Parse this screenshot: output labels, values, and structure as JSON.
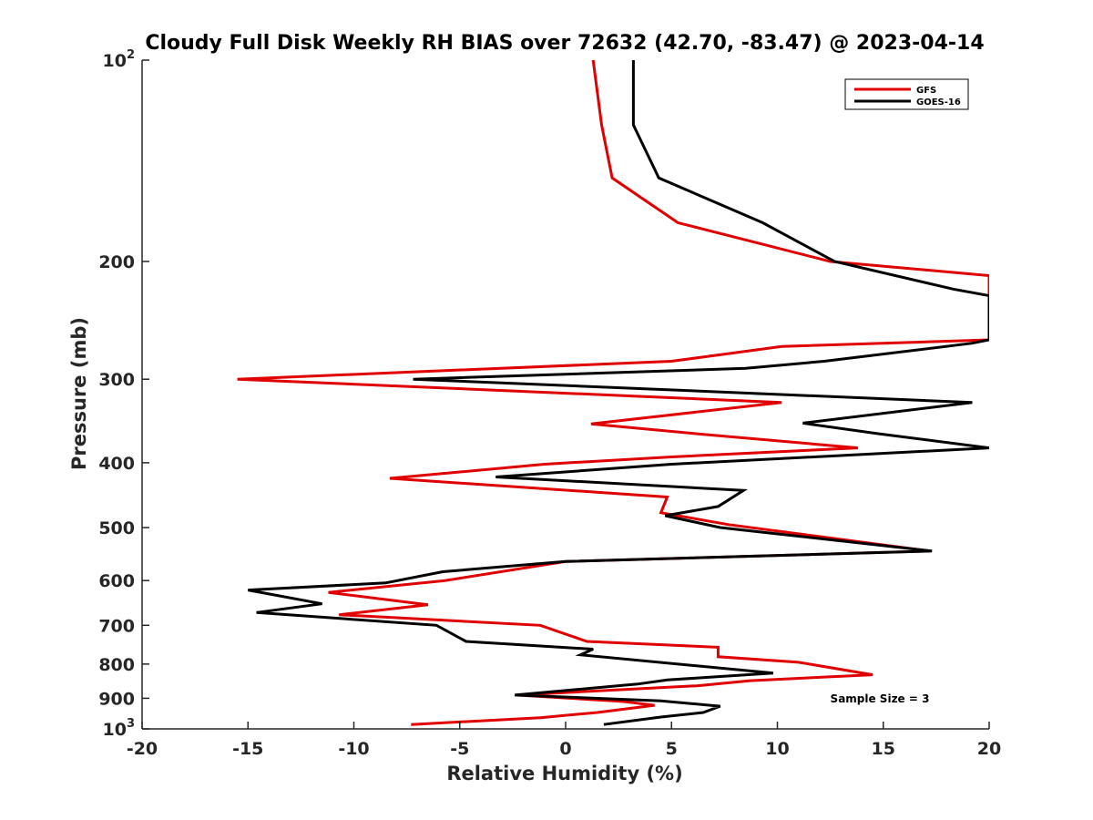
{
  "chart_data": {
    "type": "line",
    "title": "Cloudy Full Disk Weekly RH BIAS over 72632 (42.70, -83.47) @ 2023-04-14",
    "xlabel": "Relative Humidity (%)",
    "ylabel": "Pressure (mb)",
    "xlim": [
      -20,
      20
    ],
    "ylim": [
      1000,
      100
    ],
    "y_scale": "log",
    "x_ticks": [
      "-20",
      "-15",
      "-10",
      "-5",
      "0",
      "5",
      "10",
      "15",
      "20"
    ],
    "y_ticks": [
      {
        "value": 100,
        "base": "10",
        "exp": "2"
      },
      {
        "value": 200,
        "label": "200"
      },
      {
        "value": 300,
        "label": "300"
      },
      {
        "value": 400,
        "label": "400"
      },
      {
        "value": 500,
        "label": "500"
      },
      {
        "value": 600,
        "label": "600"
      },
      {
        "value": 700,
        "label": "700"
      },
      {
        "value": 800,
        "label": "800"
      },
      {
        "value": 900,
        "label": "900"
      },
      {
        "value": 1000,
        "base": "10",
        "exp": "3"
      }
    ],
    "legend_position": "top-right",
    "annotation": "Sample Size = 3",
    "series": [
      {
        "name": "GFS",
        "color": "#e00000",
        "points": [
          [
            1.3,
            100
          ],
          [
            1.7,
            125
          ],
          [
            2.2,
            150
          ],
          [
            5.3,
            175
          ],
          [
            12.5,
            200
          ],
          [
            20.0,
            210
          ],
          [
            20.0,
            262
          ],
          [
            10.2,
            268
          ],
          [
            5.0,
            282
          ],
          [
            -15.5,
            300
          ],
          [
            10.2,
            325
          ],
          [
            1.2,
            350
          ],
          [
            6.2,
            362
          ],
          [
            13.8,
            380
          ],
          [
            5.0,
            392
          ],
          [
            -1.0,
            402
          ],
          [
            -8.3,
            422
          ],
          [
            4.8,
            450
          ],
          [
            4.5,
            475
          ],
          [
            7.7,
            495
          ],
          [
            17.2,
            542
          ],
          [
            0.0,
            562
          ],
          [
            -5.7,
            600
          ],
          [
            -11.2,
            625
          ],
          [
            -6.5,
            652
          ],
          [
            -10.7,
            675
          ],
          [
            -1.2,
            700
          ],
          [
            1.0,
            740
          ],
          [
            7.2,
            755
          ],
          [
            7.2,
            780
          ],
          [
            11.0,
            795
          ],
          [
            14.5,
            830
          ],
          [
            8.7,
            847
          ],
          [
            6.2,
            862
          ],
          [
            -2.3,
            890
          ],
          [
            2.7,
            910
          ],
          [
            4.2,
            922
          ],
          [
            1.5,
            945
          ],
          [
            -1.2,
            962
          ],
          [
            -7.3,
            985
          ]
        ]
      },
      {
        "name": "GOES-16",
        "color": "#000000",
        "points": [
          [
            3.2,
            100
          ],
          [
            3.2,
            125
          ],
          [
            4.4,
            150
          ],
          [
            9.3,
            175
          ],
          [
            12.7,
            200
          ],
          [
            18.3,
            220
          ],
          [
            20.0,
            225
          ],
          [
            20.0,
            262
          ],
          [
            19.2,
            265
          ],
          [
            12.2,
            282
          ],
          [
            8.5,
            289
          ],
          [
            -7.2,
            300
          ],
          [
            19.2,
            325
          ],
          [
            11.2,
            349
          ],
          [
            14.8,
            362
          ],
          [
            20.0,
            380
          ],
          [
            5.0,
            402
          ],
          [
            -3.3,
            420
          ],
          [
            8.4,
            440
          ],
          [
            7.2,
            465
          ],
          [
            4.7,
            480
          ],
          [
            7.3,
            500
          ],
          [
            17.3,
            542
          ],
          [
            0.0,
            562
          ],
          [
            -5.8,
            582
          ],
          [
            -8.5,
            605
          ],
          [
            -15.0,
            620
          ],
          [
            -11.5,
            650
          ],
          [
            -14.6,
            670
          ],
          [
            -6.1,
            700
          ],
          [
            -4.7,
            740
          ],
          [
            1.3,
            760
          ],
          [
            0.7,
            775
          ],
          [
            9.8,
            825
          ],
          [
            4.8,
            845
          ],
          [
            3.4,
            857
          ],
          [
            -2.4,
            890
          ],
          [
            4.5,
            908
          ],
          [
            7.3,
            925
          ],
          [
            6.5,
            945
          ],
          [
            4.5,
            960
          ],
          [
            1.8,
            985
          ]
        ]
      }
    ]
  }
}
